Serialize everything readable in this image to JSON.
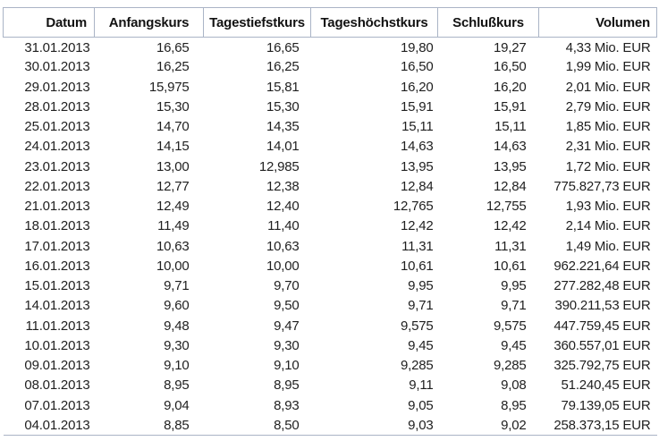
{
  "colors": {
    "border": "#aab4c6",
    "header_text": "#121212",
    "cell_text": "#1f1f1f"
  },
  "table": {
    "columns": [
      "Datum",
      "Anfangskurs",
      "Tagestiefstkurs",
      "Tageshöchstkurs",
      "Schlußkurs",
      "Volumen"
    ],
    "rows": [
      [
        "31.01.2013",
        "16,65",
        "16,65",
        "19,80",
        "19,27",
        "4,33 Mio. EUR"
      ],
      [
        "30.01.2013",
        "16,25",
        "16,25",
        "16,50",
        "16,50",
        "1,99 Mio. EUR"
      ],
      [
        "29.01.2013",
        "15,975",
        "15,81",
        "16,20",
        "16,20",
        "2,01 Mio. EUR"
      ],
      [
        "28.01.2013",
        "15,30",
        "15,30",
        "15,91",
        "15,91",
        "2,79 Mio. EUR"
      ],
      [
        "25.01.2013",
        "14,70",
        "14,35",
        "15,11",
        "15,11",
        "1,85 Mio. EUR"
      ],
      [
        "24.01.2013",
        "14,15",
        "14,01",
        "14,63",
        "14,63",
        "2,31 Mio. EUR"
      ],
      [
        "23.01.2013",
        "13,00",
        "12,985",
        "13,95",
        "13,95",
        "1,72 Mio. EUR"
      ],
      [
        "22.01.2013",
        "12,77",
        "12,38",
        "12,84",
        "12,84",
        "775.827,73 EUR"
      ],
      [
        "21.01.2013",
        "12,49",
        "12,40",
        "12,765",
        "12,755",
        "1,93 Mio. EUR"
      ],
      [
        "18.01.2013",
        "11,49",
        "11,40",
        "12,42",
        "12,42",
        "2,14 Mio. EUR"
      ],
      [
        "17.01.2013",
        "10,63",
        "10,63",
        "11,31",
        "11,31",
        "1,49 Mio. EUR"
      ],
      [
        "16.01.2013",
        "10,00",
        "10,00",
        "10,61",
        "10,61",
        "962.221,64 EUR"
      ],
      [
        "15.01.2013",
        "9,71",
        "9,70",
        "9,95",
        "9,95",
        "277.282,48 EUR"
      ],
      [
        "14.01.2013",
        "9,60",
        "9,50",
        "9,71",
        "9,71",
        "390.211,53 EUR"
      ],
      [
        "11.01.2013",
        "9,48",
        "9,47",
        "9,575",
        "9,575",
        "447.759,45 EUR"
      ],
      [
        "10.01.2013",
        "9,30",
        "9,30",
        "9,45",
        "9,45",
        "360.557,01 EUR"
      ],
      [
        "09.01.2013",
        "9,10",
        "9,10",
        "9,285",
        "9,285",
        "325.792,75 EUR"
      ],
      [
        "08.01.2013",
        "8,95",
        "8,95",
        "9,11",
        "9,08",
        "51.240,45 EUR"
      ],
      [
        "07.01.2013",
        "9,04",
        "8,93",
        "9,05",
        "8,95",
        "79.139,05 EUR"
      ],
      [
        "04.01.2013",
        "8,85",
        "8,50",
        "9,03",
        "9,02",
        "258.373,15 EUR"
      ]
    ]
  }
}
